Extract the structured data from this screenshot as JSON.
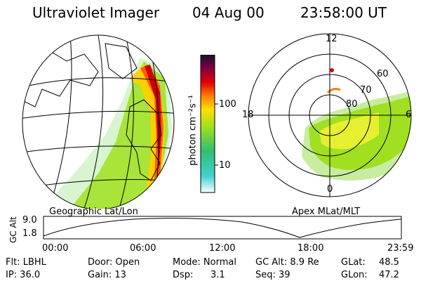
{
  "header": {
    "title": "Ultraviolet Imager",
    "date": "04 Aug 00",
    "time": "23:58:00 UT"
  },
  "geo_panel": {
    "caption": "Geographic Lat/Lon"
  },
  "colorbar": {
    "unit_label": "photon cm⁻²s⁻¹",
    "ticks": [
      "100",
      "10"
    ],
    "scale": "log"
  },
  "polar_panel": {
    "caption": "Apex MLat/MLT",
    "mlt_labels": {
      "top": "12",
      "left": "18",
      "right": "6",
      "bottom": "0"
    },
    "lat_labels": [
      "60",
      "70",
      "80"
    ]
  },
  "orbit_plot": {
    "ylabel": "GC Alt",
    "y_ticks": [
      "9.0",
      "1.8"
    ],
    "x_ticks": [
      "00:00",
      "06:00",
      "12:00",
      "18:00",
      "23:59"
    ]
  },
  "info": {
    "row1": {
      "flt": "Flt: LBHL",
      "door": "Door: Open",
      "mode": "Mode: Normal",
      "gcalt": "GC Alt: 8.9 Re",
      "glat_label": "GLat:",
      "glat_value": "48.5"
    },
    "row2": {
      "ip": "IP: 36.0",
      "gain": "Gain: 13",
      "dsp_label": "Dsp:",
      "dsp_value": "3.1",
      "seq": "Seq: 39",
      "glon_label": "GLon:",
      "glon_value": "47.2"
    }
  },
  "colors": {
    "auroral_gradient": [
      "#ffffff",
      "#40d0d0",
      "#30c070",
      "#a0e020",
      "#ffe000",
      "#ff8000",
      "#e00000",
      "#800040",
      "#1a1030"
    ]
  }
}
